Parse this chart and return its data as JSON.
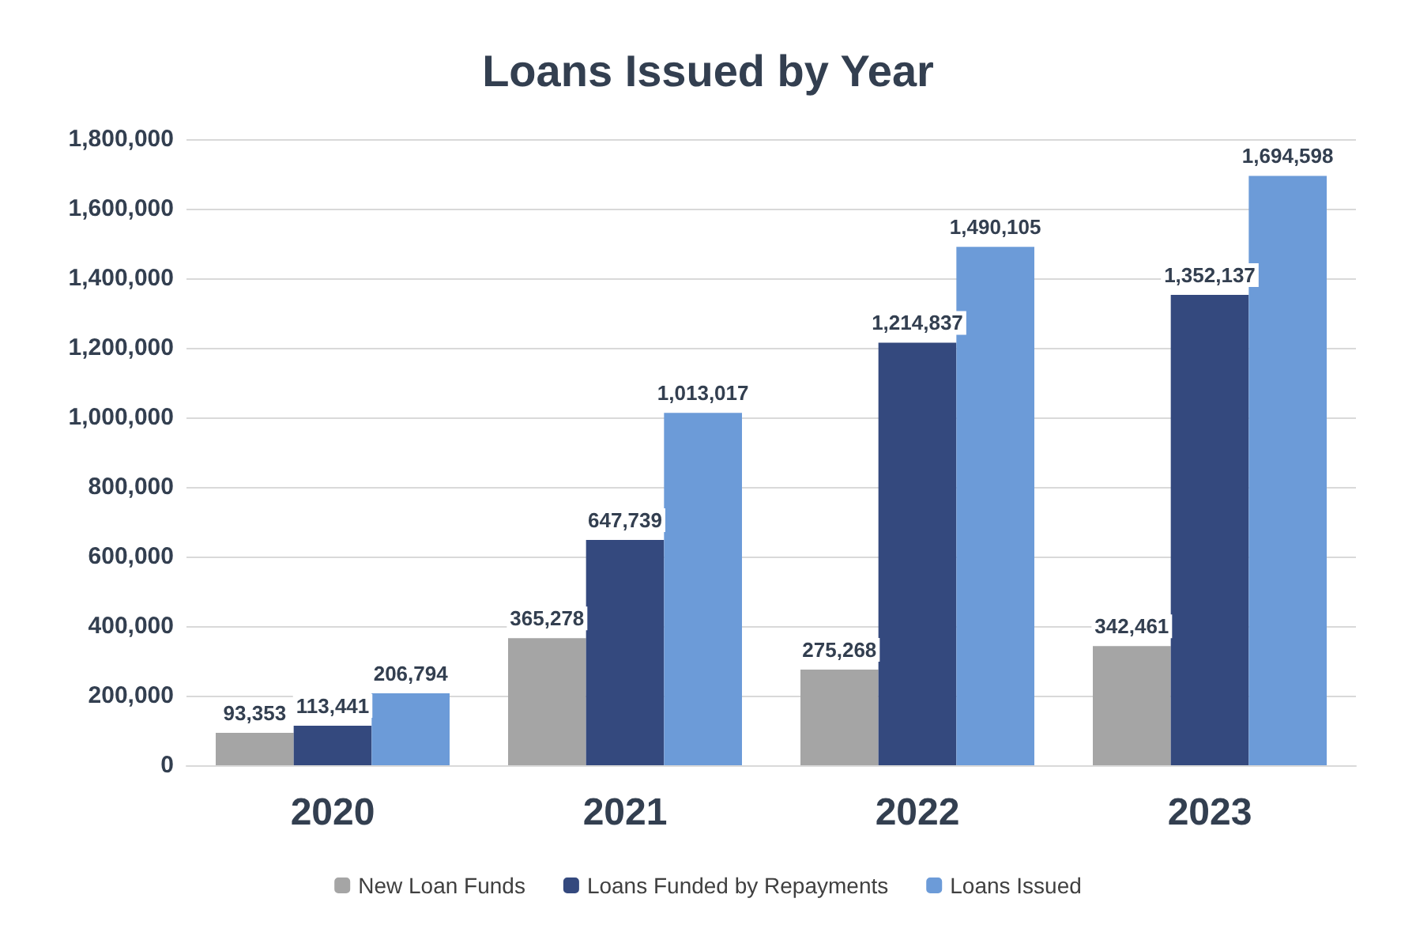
{
  "chart_data": {
    "type": "bar",
    "title": "Loans Issued by Year",
    "categories": [
      "2020",
      "2021",
      "2022",
      "2023"
    ],
    "series": [
      {
        "name": "New Loan Funds",
        "color": "#a5a5a5",
        "values": [
          93353,
          365278,
          275268,
          342461
        ],
        "value_labels": [
          "93,353",
          "365,278",
          "275,268",
          "342,461"
        ]
      },
      {
        "name": "Loans Funded by Repayments",
        "color": "#34497e",
        "values": [
          113441,
          647739,
          1214837,
          1352137
        ],
        "value_labels": [
          "113,441",
          "647,739",
          "1,214,837",
          "1,352,137"
        ]
      },
      {
        "name": "Loans Issued",
        "color": "#6c9bd8",
        "values": [
          206794,
          1013017,
          1490105,
          1694598
        ],
        "value_labels": [
          "206,794",
          "1,013,017",
          "1,490,105",
          "1,694,598"
        ]
      }
    ],
    "ylim": [
      0,
      1800000
    ],
    "yticks": [
      0,
      {
        "value": 200000,
        "label": "200,000"
      },
      {
        "value": 400000,
        "label": "400,000"
      },
      {
        "value": 600000,
        "label": "600,000"
      },
      {
        "value": 800000,
        "label": "800,000"
      },
      {
        "value": 1000000,
        "label": "1,000,000"
      },
      {
        "value": 1200000,
        "label": "1,200,000"
      },
      {
        "value": 1400000,
        "label": "1,400,000"
      },
      {
        "value": 1600000,
        "label": "1,600,000"
      },
      {
        "value": 1800000,
        "label": "1,800,000"
      }
    ],
    "grid": "y",
    "legend": "bottom"
  }
}
